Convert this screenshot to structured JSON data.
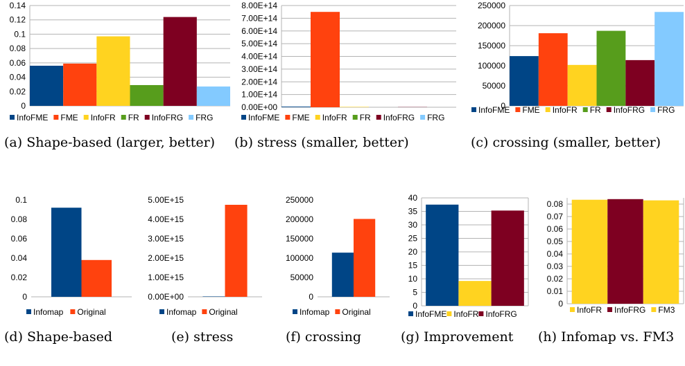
{
  "colors": {
    "InfoFME": "#004586",
    "FME": "#ff420e",
    "InfoFR": "#ffd320",
    "FR": "#579d1c",
    "InfoFRG": "#7e0021",
    "FRG": "#83caff",
    "Infomap": "#004586",
    "Original": "#ff420e",
    "FM3": "#ffd320",
    "grid": "#b3b3b3",
    "axis_text": "#000000"
  },
  "chart_data": [
    {
      "id": "a",
      "type": "bar",
      "categories": [
        "InfoFME",
        "FME",
        "InfoFR",
        "FR",
        "InfoFRG",
        "FRG"
      ],
      "values": [
        0.056,
        0.059,
        0.097,
        0.029,
        0.124,
        0.027
      ],
      "ylim": [
        0,
        0.14
      ],
      "yticks": [
        "0",
        "0.02",
        "0.04",
        "0.06",
        "0.08",
        "0.1",
        "0.12",
        "0.14"
      ],
      "xlabel": "",
      "ylabel": "",
      "grid": true,
      "legend": "bottom",
      "caption": "(a) Shape-based (larger, better)"
    },
    {
      "id": "b",
      "type": "bar",
      "categories": [
        "InfoFME",
        "FME",
        "InfoFR",
        "FR",
        "InfoFRG",
        "FRG"
      ],
      "values": [
        5000000000000,
        750000000000000,
        3000000000000,
        0,
        1500000000000,
        0
      ],
      "ylim": [
        0,
        800000000000000
      ],
      "yticks": [
        "0.00E+00",
        "1.00E+14",
        "2.00E+14",
        "3.00E+14",
        "4.00E+14",
        "5.00E+14",
        "6.00E+14",
        "7.00E+14",
        "8.00E+14"
      ],
      "xlabel": "",
      "ylabel": "",
      "grid": true,
      "legend": "bottom",
      "caption": "(b) stress (smaller, better)"
    },
    {
      "id": "c",
      "type": "bar",
      "categories": [
        "InfoFME",
        "FME",
        "InfoFR",
        "FR",
        "InfoFRG",
        "FRG"
      ],
      "values": [
        124000,
        181000,
        102000,
        187000,
        114000,
        234000
      ],
      "ylim": [
        0,
        250000
      ],
      "yticks": [
        "0",
        "50000",
        "100000",
        "150000",
        "200000",
        "250000"
      ],
      "xlabel": "",
      "ylabel": "",
      "grid": true,
      "legend": "bottom",
      "caption": "(c) crossing (smaller, better)"
    },
    {
      "id": "d",
      "type": "bar",
      "categories": [
        "Infomap",
        "Original"
      ],
      "values": [
        0.092,
        0.038
      ],
      "ylim": [
        0,
        0.1
      ],
      "yticks": [
        "0",
        "0.02",
        "0.04",
        "0.06",
        "0.08",
        "0.1"
      ],
      "xlabel": "",
      "ylabel": "",
      "grid": false,
      "legend": "bottom",
      "caption": "(d) Shape-based"
    },
    {
      "id": "e",
      "type": "bar",
      "categories": [
        "Infomap",
        "Original"
      ],
      "values": [
        20000000000000,
        4750000000000000
      ],
      "ylim": [
        0,
        5000000000000000
      ],
      "yticks": [
        "0.00E+00",
        "1.00E+15",
        "2.00E+15",
        "3.00E+15",
        "4.00E+15",
        "5.00E+15"
      ],
      "xlabel": "",
      "ylabel": "",
      "grid": false,
      "legend": "bottom",
      "caption": "(e) stress"
    },
    {
      "id": "f",
      "type": "bar",
      "categories": [
        "Infomap",
        "Original"
      ],
      "values": [
        114000,
        201000
      ],
      "ylim": [
        0,
        250000
      ],
      "yticks": [
        "0",
        "50000",
        "100000",
        "150000",
        "200000",
        "250000"
      ],
      "xlabel": "",
      "ylabel": "",
      "grid": false,
      "legend": "bottom",
      "caption": "(f) crossing"
    },
    {
      "id": "g",
      "type": "bar",
      "categories": [
        "InfoFME",
        "InfoFR",
        "InfoFRG"
      ],
      "values": [
        37.5,
        9.2,
        35.3
      ],
      "ylim": [
        0,
        40
      ],
      "yticks": [
        "0",
        "5",
        "10",
        "15",
        "20",
        "25",
        "30",
        "35",
        "40"
      ],
      "xlabel": "",
      "ylabel": "",
      "grid": true,
      "legend": "bottom",
      "caption": "(g) Improvement"
    },
    {
      "id": "h",
      "type": "bar",
      "categories": [
        "InfoFR",
        "InfoFRG",
        "FM3"
      ],
      "values": [
        0.0835,
        0.084,
        0.083
      ],
      "ylim": [
        0,
        0.085
      ],
      "yticks": [
        "0",
        "0.01",
        "0.02",
        "0.03",
        "0.04",
        "0.05",
        "0.06",
        "0.07",
        "0.08"
      ],
      "xlabel": "",
      "ylabel": "",
      "grid": true,
      "legend": "bottom",
      "caption": "(h) Infomap vs. FM3"
    }
  ]
}
